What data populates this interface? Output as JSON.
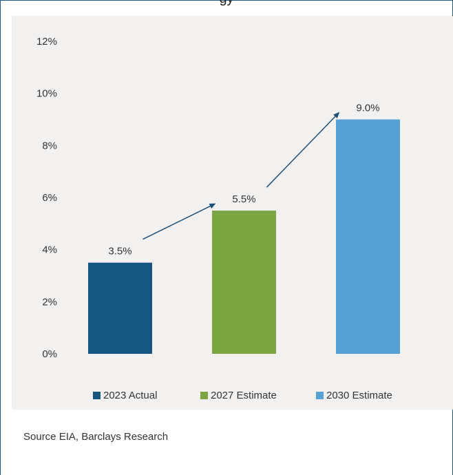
{
  "title": "gy",
  "source": "Source EIA, Barclays Research",
  "colors": {
    "frame": "#1b5a8a",
    "panel": "#f2f1f0",
    "arrow": "#1b4f78"
  },
  "chart_data": {
    "type": "bar",
    "categories": [
      "2023 Actual",
      "2027 Estimate",
      "2030 Estimate"
    ],
    "values": [
      3.5,
      5.5,
      9.0
    ],
    "data_labels": [
      "3.5%",
      "5.5%",
      "9.0%"
    ],
    "colors": [
      "#155580",
      "#7aa540",
      "#57a0d4"
    ],
    "ylim": [
      0,
      12
    ],
    "yticks": [
      "0%",
      "2%",
      "4%",
      "6%",
      "8%",
      "10%",
      "12%"
    ],
    "grid": false,
    "legend": "bottom",
    "annotations": [
      "arrow 2023 Actual to 2027 Estimate",
      "arrow 2027 Estimate to 2030 Estimate"
    ]
  }
}
